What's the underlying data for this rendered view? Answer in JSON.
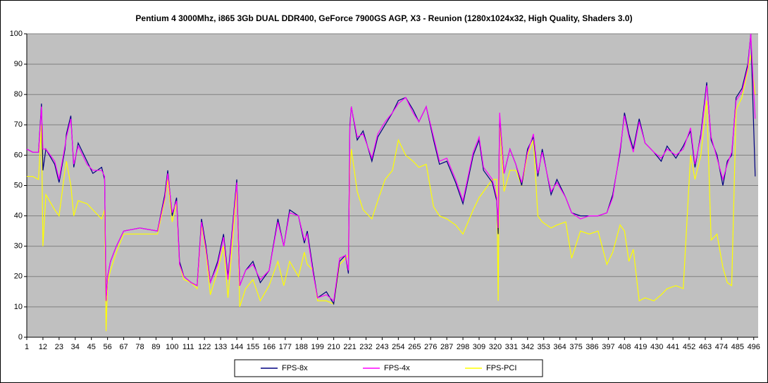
{
  "chart_data": {
    "type": "line",
    "title": "Pentium 4 3000Mhz, i865 3Gb DUAL DDR400, GeForce 7900GS AGP, X3 - Reunion (1280x1024x32, High Quality, Shaders 3.0)",
    "x": [
      1,
      5,
      9,
      11,
      12,
      14,
      20,
      23,
      27,
      28,
      31,
      33,
      36,
      42,
      46,
      52,
      54,
      55,
      56,
      58,
      62,
      67,
      78,
      90,
      95,
      97,
      100,
      103,
      105,
      108,
      113,
      117,
      120,
      123,
      126,
      131,
      135,
      138,
      144,
      146,
      150,
      155,
      160,
      166,
      172,
      176,
      180,
      186,
      190,
      192,
      196,
      199,
      205,
      210,
      214,
      218,
      220,
      221,
      222,
      226,
      230,
      236,
      240,
      245,
      250,
      254,
      259,
      264,
      268,
      273,
      278,
      282,
      287,
      293,
      298,
      305,
      309,
      312,
      318,
      321,
      322,
      323,
      326,
      330,
      334,
      338,
      342,
      346,
      349,
      352,
      358,
      362,
      368,
      372,
      378,
      384,
      390,
      396,
      400,
      405,
      408,
      411,
      414,
      418,
      422,
      428,
      433,
      437,
      443,
      448,
      453,
      456,
      460,
      464,
      467,
      471,
      475,
      478,
      481,
      484,
      488,
      492,
      494,
      497
    ],
    "series": [
      {
        "name": "FPS-8x",
        "color": "#000080",
        "values": [
          62,
          61,
          61,
          77,
          55,
          62,
          57,
          51,
          62,
          67,
          73,
          56,
          64,
          58,
          54,
          56,
          52,
          12,
          20,
          25,
          30,
          35,
          36,
          35,
          47,
          55,
          40,
          46,
          25,
          20,
          18,
          17,
          39,
          30,
          18,
          25,
          34,
          20,
          52,
          17,
          22,
          25,
          18,
          22,
          39,
          30,
          42,
          40,
          31,
          35,
          22,
          13,
          15,
          11,
          25,
          27,
          21,
          70,
          76,
          65,
          68,
          58,
          66,
          70,
          74,
          78,
          79,
          75,
          71,
          76,
          65,
          57,
          58,
          51,
          44,
          60,
          65,
          55,
          51,
          45,
          34,
          73,
          54,
          62,
          57,
          50,
          62,
          66,
          53,
          62,
          47,
          52,
          46,
          41,
          40,
          40,
          40,
          41,
          47,
          61,
          74,
          67,
          62,
          72,
          64,
          61,
          58,
          63,
          59,
          63,
          68,
          56,
          67,
          84,
          65,
          60,
          50,
          58,
          60,
          79,
          82,
          90,
          100,
          53
        ]
      },
      {
        "name": "FPS-4x",
        "color": "#ff00ff",
        "values": [
          62,
          61,
          61,
          76,
          62,
          62,
          58,
          52,
          63,
          66,
          72,
          57,
          63,
          57,
          55,
          55,
          53,
          12,
          20,
          25,
          30,
          35,
          36,
          35,
          46,
          54,
          41,
          45,
          24,
          20,
          18,
          17,
          38,
          29,
          18,
          24,
          33,
          19,
          51,
          17,
          22,
          24,
          19,
          22,
          38,
          30,
          41,
          40,
          32,
          34,
          21,
          13,
          14,
          12,
          26,
          27,
          22,
          69,
          76,
          66,
          67,
          59,
          67,
          71,
          74,
          77,
          79,
          74,
          71,
          76,
          66,
          58,
          59,
          52,
          45,
          61,
          66,
          56,
          52,
          46,
          36,
          74,
          54,
          62,
          57,
          51,
          61,
          67,
          54,
          61,
          48,
          51,
          46,
          41,
          39,
          40,
          40,
          41,
          46,
          62,
          73,
          66,
          61,
          71,
          64,
          61,
          59,
          62,
          60,
          62,
          69,
          57,
          66,
          83,
          66,
          59,
          52,
          57,
          61,
          78,
          81,
          89,
          100,
          72
        ]
      },
      {
        "name": "FPS-PCI",
        "color": "#ffff00",
        "values": [
          53,
          53,
          52,
          70,
          30,
          47,
          42,
          40,
          55,
          58,
          50,
          40,
          45,
          44,
          42,
          39,
          42,
          2,
          18,
          22,
          28,
          34,
          34,
          34,
          45,
          52,
          38,
          44,
          24,
          19,
          18,
          16,
          37,
          28,
          14,
          22,
          30,
          13,
          49,
          10,
          16,
          19,
          12,
          17,
          25,
          17,
          25,
          20,
          28,
          24,
          22,
          12,
          12,
          11,
          24,
          26,
          27,
          55,
          62,
          48,
          42,
          39,
          45,
          52,
          55,
          65,
          60,
          58,
          56,
          57,
          43,
          40,
          39,
          37,
          34,
          42,
          46,
          48,
          52,
          52,
          12,
          71,
          48,
          55,
          55,
          50,
          60,
          65,
          40,
          38,
          36,
          37,
          38,
          26,
          35,
          34,
          35,
          24,
          28,
          37,
          35,
          25,
          29,
          12,
          13,
          12,
          14,
          16,
          17,
          16,
          60,
          52,
          60,
          78,
          32,
          34,
          23,
          18,
          17,
          75,
          79,
          88,
          93,
          80
        ]
      }
    ],
    "xlim": [
      1,
      499
    ],
    "xticks": [
      1,
      12,
      23,
      34,
      45,
      56,
      67,
      78,
      89,
      100,
      111,
      122,
      133,
      144,
      155,
      166,
      177,
      188,
      199,
      210,
      221,
      232,
      243,
      254,
      265,
      276,
      287,
      298,
      309,
      320,
      331,
      342,
      353,
      364,
      375,
      386,
      397,
      408,
      419,
      430,
      441,
      452,
      463,
      474,
      485,
      496
    ],
    "ylim": [
      0,
      100
    ],
    "yticks": [
      0,
      10,
      20,
      30,
      40,
      50,
      60,
      70,
      80,
      90,
      100
    ],
    "grid": true,
    "legend": "bottom"
  }
}
